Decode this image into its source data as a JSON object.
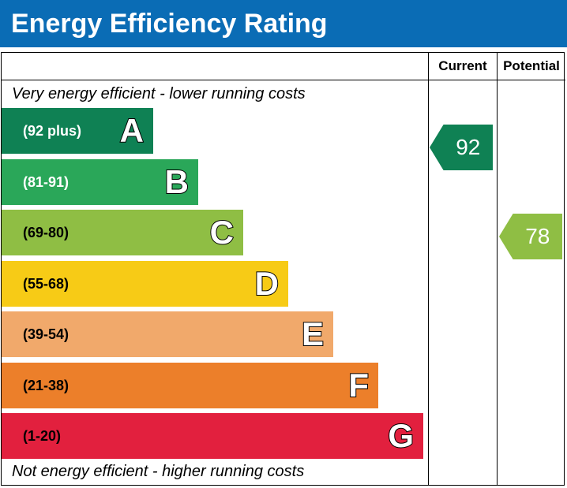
{
  "header": {
    "title": "Energy Efficiency Rating"
  },
  "columns": {
    "current": "Current",
    "potential": "Potential"
  },
  "captions": {
    "top": "Very energy efficient - lower running costs",
    "bottom": "Not energy efficient - higher running costs"
  },
  "chart_data": {
    "type": "bar",
    "title": "Energy Efficiency Rating",
    "categories": [
      "A",
      "B",
      "C",
      "D",
      "E",
      "F",
      "G"
    ],
    "ranges": [
      "(92 plus)",
      "(81-91)",
      "(69-80)",
      "(55-68)",
      "(39-54)",
      "(21-38)",
      "(1-20)"
    ],
    "band_lower_bounds": [
      92,
      81,
      69,
      55,
      39,
      21,
      1
    ],
    "band_colors": [
      "#0f8154",
      "#2aa759",
      "#8fbe44",
      "#f7cb16",
      "#f1a96b",
      "#ec7f2a",
      "#e2203e"
    ],
    "range_text_colors": [
      "#ffffff",
      "#ffffff",
      "#000000",
      "#000000",
      "#000000",
      "#000000",
      "#000000"
    ],
    "series": [
      {
        "name": "Current",
        "value": 92,
        "band": "A",
        "color": "#0f8154"
      },
      {
        "name": "Potential",
        "value": 78,
        "band": "C",
        "color": "#8fbe44"
      }
    ]
  }
}
